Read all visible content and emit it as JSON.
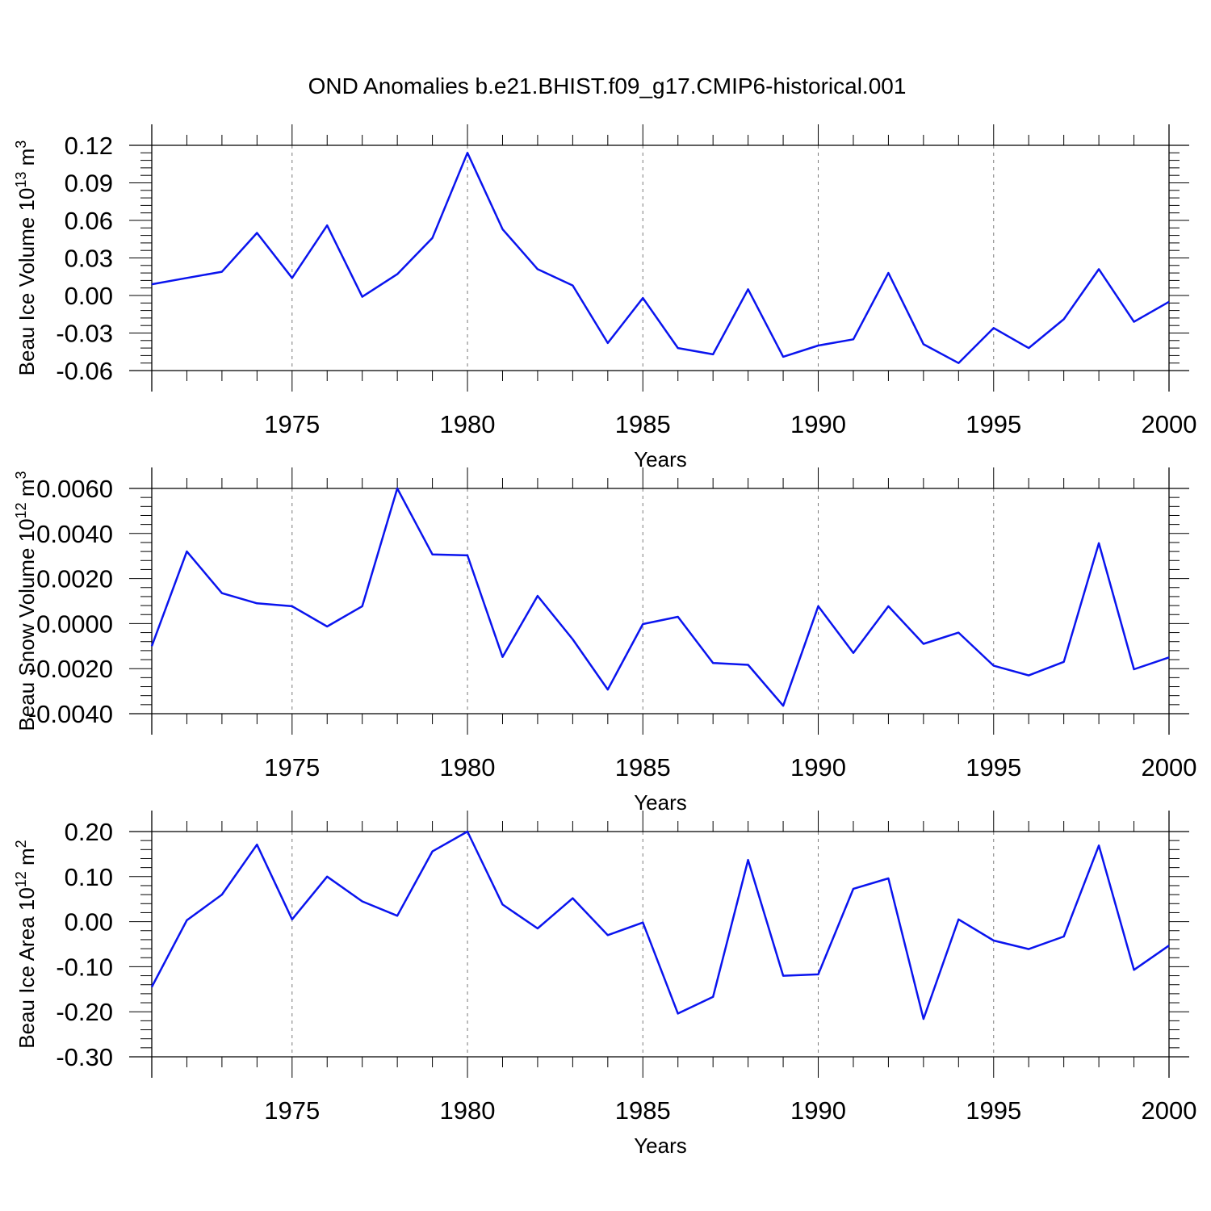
{
  "title": "OND Anomalies b.e21.BHIST.f09_g17.CMIP6-historical.001",
  "colors": {
    "line": "#0a14ee",
    "axis": "#000000",
    "grid": "#7a7a7a"
  },
  "years": [
    1971,
    1972,
    1973,
    1974,
    1975,
    1976,
    1977,
    1978,
    1979,
    1980,
    1981,
    1982,
    1983,
    1984,
    1985,
    1986,
    1987,
    1988,
    1989,
    1990,
    1991,
    1992,
    1993,
    1994,
    1995,
    1996,
    1997,
    1998,
    1999,
    2000
  ],
  "chart_data": [
    {
      "type": "line",
      "ylabel_main": "Beau Ice Volume 10",
      "ylabel_exp": "13",
      "ylabel_unit": " m",
      "ylabel_unit_exp": "3",
      "xlabel": "Years",
      "xlim": [
        1971,
        2000
      ],
      "ylim": [
        -0.06,
        0.12
      ],
      "yticks": [
        0.12,
        0.09,
        0.06,
        0.03,
        0.0,
        -0.03,
        -0.06
      ],
      "ytick_labels": [
        "0.12",
        "0.09",
        "0.06",
        "0.03",
        "0.00",
        "-0.03",
        "-0.06"
      ],
      "xticks": [
        1975,
        1980,
        1985,
        1990,
        1995,
        2000
      ],
      "xtick_labels": [
        "1975",
        "1980",
        "1985",
        "1990",
        "1995",
        "2000"
      ],
      "grid": "vertical dashed at major x ticks",
      "series": [
        {
          "values": [
            0.009,
            0.014,
            0.019,
            0.05,
            0.014,
            0.056,
            -0.001,
            0.017,
            0.046,
            0.114,
            0.053,
            0.021,
            0.008,
            -0.038,
            -0.002,
            -0.042,
            -0.047,
            0.005,
            -0.049,
            -0.04,
            -0.035,
            0.018,
            -0.039,
            -0.054,
            -0.026,
            -0.042,
            -0.019,
            0.021,
            -0.021,
            -0.005
          ]
        }
      ]
    },
    {
      "type": "line",
      "ylabel_main": "Beau Snow Volume 10",
      "ylabel_exp": "12",
      "ylabel_unit": " m",
      "ylabel_unit_exp": "3",
      "xlabel": "Years",
      "xlim": [
        1971,
        2000
      ],
      "ylim": [
        -0.004,
        0.006
      ],
      "yticks": [
        0.006,
        0.004,
        0.002,
        0.0,
        -0.002,
        -0.004
      ],
      "ytick_labels": [
        "0.0060",
        "0.0040",
        "0.0020",
        "0.0000",
        "-0.0020",
        "-0.0040"
      ],
      "xticks": [
        1975,
        1980,
        1985,
        1990,
        1995,
        2000
      ],
      "xtick_labels": [
        "1975",
        "1980",
        "1985",
        "1990",
        "1995",
        "2000"
      ],
      "grid": "vertical dashed at major x ticks",
      "series": [
        {
          "values": [
            -0.001,
            0.0032,
            0.00135,
            0.0009,
            0.00077,
            -0.00013,
            0.00077,
            0.006,
            0.00307,
            0.00303,
            -0.00148,
            0.00123,
            -0.0007,
            -0.00293,
            -2e-05,
            0.0003,
            -0.00175,
            -0.00183,
            -0.00365,
            0.00077,
            -0.0013,
            0.00077,
            -0.0009,
            -0.0004,
            -0.00187,
            -0.0023,
            -0.0017,
            0.00357,
            -0.00203,
            -0.0015
          ]
        }
      ]
    },
    {
      "type": "line",
      "ylabel_main": "Beau Ice Area 10",
      "ylabel_exp": "12",
      "ylabel_unit": " m",
      "ylabel_unit_exp": "2",
      "xlabel": "Years",
      "xlim": [
        1971,
        2000
      ],
      "ylim": [
        -0.3,
        0.2
      ],
      "yticks": [
        0.2,
        0.1,
        0.0,
        -0.1,
        -0.2,
        -0.3
      ],
      "ytick_labels": [
        "0.20",
        "0.10",
        "0.00",
        "-0.10",
        "-0.20",
        "-0.30"
      ],
      "xticks": [
        1975,
        1980,
        1985,
        1990,
        1995,
        2000
      ],
      "xtick_labels": [
        "1975",
        "1980",
        "1985",
        "1990",
        "1995",
        "2000"
      ],
      "grid": "vertical dashed at major x ticks",
      "series": [
        {
          "values": [
            -0.145,
            0.003,
            0.06,
            0.171,
            0.005,
            0.1,
            0.045,
            0.013,
            0.156,
            0.2,
            0.038,
            -0.015,
            0.052,
            -0.03,
            -0.002,
            -0.204,
            -0.167,
            0.137,
            -0.12,
            -0.117,
            0.073,
            0.096,
            -0.216,
            0.005,
            -0.042,
            -0.061,
            -0.033,
            0.169,
            -0.107,
            -0.053
          ]
        }
      ]
    }
  ]
}
